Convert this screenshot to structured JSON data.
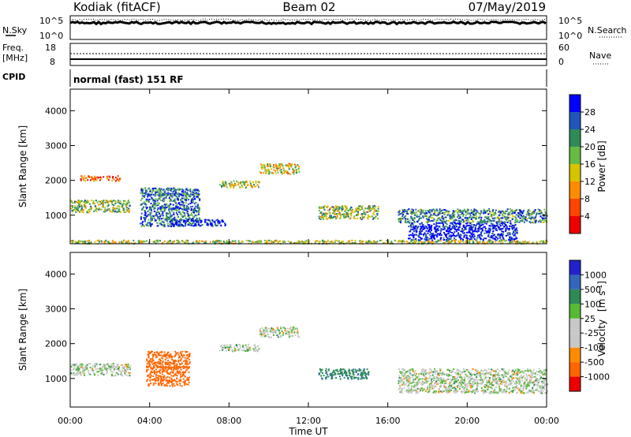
{
  "header": {
    "station": "Kodiak (fitACF)",
    "beam": "Beam 02",
    "date": "07/May/2019"
  },
  "noise_panel": {
    "left_label": "N.Sky",
    "right_label": "N.Search",
    "left_ticks": [
      "10^5",
      "10^0"
    ],
    "right_ticks": [
      "10^5",
      "10^0"
    ]
  },
  "freq_panel": {
    "left_label_1": "Freq.",
    "left_label_2": "[MHz]",
    "left_ticks": [
      "18",
      "8"
    ],
    "right_label": "Nave",
    "right_ticks": [
      "60",
      "0"
    ]
  },
  "cpid": {
    "label": "CPID",
    "value": "normal (fast) 151 RF"
  },
  "chart_data": [
    {
      "type": "heatmap",
      "panel": "power",
      "ylabel": "Slant Range [km]",
      "yticks": [
        "4000",
        "3000",
        "2000",
        "1000"
      ],
      "ylim": [
        180,
        4620
      ],
      "xlim": [
        0,
        24
      ],
      "colorbar_label": "Power [dB]",
      "colorbar_ticks": [
        "28",
        "24",
        "20",
        "16",
        "12",
        "8",
        "4"
      ],
      "colorbar_colors": [
        "#0000ff",
        "#2255bb",
        "#2e8b57",
        "#66bb44",
        "#d7c400",
        "#ff8c00",
        "#ff4500",
        "#ee0000"
      ],
      "echo_regions": [
        {
          "t": [
            0.0,
            3.0
          ],
          "r": [
            1100,
            1450
          ],
          "level": 0.55
        },
        {
          "t": [
            0.5,
            2.5
          ],
          "r": [
            2000,
            2150
          ],
          "level": 0.25
        },
        {
          "t": [
            3.5,
            6.5
          ],
          "r": [
            700,
            1800
          ],
          "level": 0.75
        },
        {
          "t": [
            5.0,
            7.8
          ],
          "r": [
            700,
            900
          ],
          "level": 0.9
        },
        {
          "t": [
            7.5,
            9.5
          ],
          "r": [
            1800,
            2000
          ],
          "level": 0.5
        },
        {
          "t": [
            9.5,
            11.5
          ],
          "r": [
            2200,
            2500
          ],
          "level": 0.45
        },
        {
          "t": [
            12.5,
            15.5
          ],
          "r": [
            900,
            1300
          ],
          "level": 0.55
        },
        {
          "t": [
            16.5,
            24.0
          ],
          "r": [
            800,
            1200
          ],
          "level": 0.7
        },
        {
          "t": [
            17.0,
            22.5
          ],
          "r": [
            300,
            800
          ],
          "level": 0.95
        },
        {
          "t": [
            0.0,
            24.0
          ],
          "r": [
            200,
            300
          ],
          "level": 0.5
        }
      ]
    },
    {
      "type": "heatmap",
      "panel": "velocity",
      "ylabel": "Slant Range [km]",
      "yticks": [
        "4000",
        "3000",
        "2000",
        "1000"
      ],
      "ylim": [
        180,
        4620
      ],
      "xlim": [
        0,
        24
      ],
      "colorbar_label": "Velocity",
      "colorbar_unit": "[m s^-1]",
      "colorbar_ticks": [
        "1000",
        "500",
        "100",
        "25",
        "-25",
        "-100",
        "-500",
        "-1000"
      ],
      "colorbar_colors": [
        "#2222cc",
        "#3366bb",
        "#2e8b57",
        "#55bb33",
        "#c8c8c8",
        "#c8c8c8",
        "#ff8c00",
        "#ff6600",
        "#ee0000"
      ],
      "xlabel": "Time UT",
      "xticks": [
        "00:00",
        "04:00",
        "08:00",
        "12:00",
        "16:00",
        "20:00",
        "00:00"
      ],
      "echo_regions": [
        {
          "t": [
            0.0,
            3.0
          ],
          "r": [
            1100,
            1450
          ],
          "vel": 0.0
        },
        {
          "t": [
            3.8,
            6.0
          ],
          "r": [
            800,
            1800
          ],
          "vel": -300
        },
        {
          "t": [
            7.5,
            9.5
          ],
          "r": [
            1800,
            2000
          ],
          "vel": 0.0
        },
        {
          "t": [
            9.5,
            11.5
          ],
          "r": [
            2200,
            2500
          ],
          "vel": 0.0
        },
        {
          "t": [
            12.5,
            15.0
          ],
          "r": [
            1000,
            1300
          ],
          "vel": 80
        },
        {
          "t": [
            16.5,
            24.0
          ],
          "r": [
            600,
            1300
          ],
          "vel": 0.0
        }
      ]
    }
  ]
}
